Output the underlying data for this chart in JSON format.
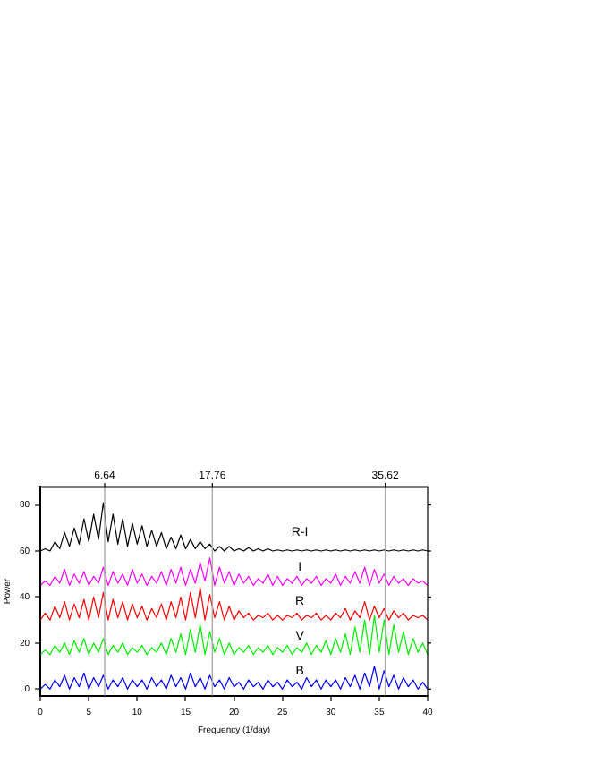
{
  "chart_data": {
    "type": "line",
    "xlabel": "Frequency (1/day)",
    "ylabel": "Power",
    "x": [
      0,
      0.5,
      1,
      1.5,
      2,
      2.5,
      3,
      3.5,
      4,
      4.5,
      5,
      5.5,
      6,
      6.5,
      7,
      7.5,
      8,
      8.5,
      9,
      9.5,
      10,
      10.5,
      11,
      11.5,
      12,
      12.5,
      13,
      13.5,
      14,
      14.5,
      15,
      15.5,
      16,
      16.5,
      17,
      17.5,
      18,
      18.5,
      19,
      19.5,
      20,
      20.5,
      21,
      21.5,
      22,
      22.5,
      23,
      23.5,
      24,
      24.5,
      25,
      25.5,
      26,
      26.5,
      27,
      27.5,
      28,
      28.5,
      29,
      29.5,
      30,
      30.5,
      31,
      31.5,
      32,
      32.5,
      33,
      33.5,
      34,
      34.5,
      35,
      35.5,
      36,
      36.5,
      37,
      37.5,
      38,
      38.5,
      39,
      39.5,
      40
    ],
    "series": [
      {
        "name": "R-I",
        "color": "#000000",
        "values": [
          60,
          61,
          60,
          64,
          61,
          68,
          62,
          70,
          63,
          74,
          64,
          76,
          65,
          81,
          64,
          76,
          63,
          74,
          62,
          72,
          63,
          71,
          62,
          69,
          62,
          68,
          61,
          66,
          61,
          67,
          61,
          65,
          61,
          64,
          61,
          63,
          60,
          62,
          60,
          62,
          60,
          61,
          60,
          61.5,
          60,
          61,
          60,
          61,
          60,
          60.5,
          60,
          60.5,
          60,
          60.5,
          60,
          60.5,
          60,
          60.5,
          60,
          60.5,
          60,
          60.5,
          60,
          60.5,
          60,
          60.5,
          60,
          60.5,
          60,
          60.5,
          60,
          60.5,
          60,
          60.5,
          60,
          60.5,
          60,
          60.5,
          60,
          60.5,
          60
        ]
      },
      {
        "name": "I",
        "color": "#ff00ff",
        "values": [
          45,
          47,
          45,
          49,
          46,
          52,
          45,
          50,
          46,
          51,
          45,
          49,
          46,
          53,
          45,
          51,
          46,
          50,
          45,
          52,
          46,
          50,
          45,
          49,
          46,
          51,
          45,
          52,
          46,
          53,
          45,
          52,
          46,
          55,
          47,
          57,
          45,
          53,
          46,
          51,
          45,
          50,
          46,
          49,
          45,
          48,
          46,
          50,
          45,
          49,
          45,
          48,
          46,
          49,
          45,
          48,
          46,
          49,
          45,
          48,
          46,
          50,
          45,
          49,
          46,
          51,
          46,
          53,
          45,
          52,
          46,
          50,
          45,
          49,
          46,
          48,
          45,
          48,
          46,
          47,
          45
        ]
      },
      {
        "name": "R",
        "color": "#ff0000",
        "values": [
          30,
          33,
          30,
          36,
          31,
          38,
          30,
          37,
          31,
          39,
          30,
          40,
          31,
          42,
          30,
          39,
          31,
          38,
          30,
          37,
          31,
          36,
          30,
          35,
          31,
          37,
          30,
          38,
          31,
          40,
          30,
          42,
          31,
          44,
          30,
          41,
          31,
          38,
          30,
          36,
          30,
          34,
          31,
          33,
          30,
          32,
          31,
          33,
          30,
          32,
          30,
          32,
          31,
          33,
          30,
          32,
          31,
          33,
          30,
          32,
          30,
          33,
          31,
          35,
          30,
          34,
          31,
          38,
          30,
          36,
          31,
          35,
          30,
          34,
          31,
          33,
          30,
          32,
          31,
          32,
          30
        ]
      },
      {
        "name": "V",
        "color": "#00ee00",
        "values": [
          15,
          17,
          15,
          19,
          16,
          20,
          15,
          21,
          16,
          22,
          15,
          20,
          16,
          22,
          15,
          19,
          16,
          20,
          15,
          18,
          16,
          19,
          15,
          18,
          16,
          20,
          15,
          22,
          16,
          24,
          15,
          26,
          16,
          28,
          15,
          25,
          16,
          22,
          15,
          20,
          15,
          18,
          16,
          19,
          15,
          18,
          16,
          19,
          15,
          18,
          16,
          19,
          15,
          18,
          16,
          20,
          15,
          19,
          16,
          21,
          15,
          22,
          16,
          24,
          15,
          27,
          16,
          30,
          15,
          32,
          16,
          30,
          15,
          28,
          16,
          25,
          15,
          22,
          16,
          20,
          15
        ]
      },
      {
        "name": "B",
        "color": "#0000ff",
        "values": [
          0,
          2,
          0,
          4,
          1,
          6,
          0,
          5,
          1,
          7,
          0,
          5,
          1,
          6,
          0,
          4,
          1,
          5,
          0,
          4,
          1,
          4,
          0,
          5,
          1,
          4,
          0,
          6,
          1,
          5,
          0,
          7,
          1,
          5,
          0,
          6,
          1,
          4,
          0,
          5,
          1,
          3,
          0,
          4,
          1,
          3,
          0,
          4,
          1,
          3,
          0,
          4,
          1,
          3,
          0,
          5,
          1,
          4,
          0,
          4,
          1,
          4,
          0,
          5,
          1,
          6,
          0,
          7,
          1,
          10,
          0,
          8,
          1,
          6,
          0,
          5,
          1,
          4,
          0,
          3,
          0
        ]
      }
    ],
    "xlim": [
      0,
      40
    ],
    "xticks": [
      0,
      5,
      10,
      15,
      20,
      25,
      30,
      35,
      40
    ],
    "ylim": [
      -3,
      88
    ],
    "yticks": [
      0,
      20,
      40,
      60,
      80
    ],
    "ref_lines": [
      {
        "axis": "x",
        "value": 6.64,
        "label": "6.64",
        "color": "#aaaaaa"
      },
      {
        "axis": "x",
        "value": 17.76,
        "label": "17.76",
        "color": "#aaaaaa"
      },
      {
        "axis": "x",
        "value": 35.62,
        "label": "35.62",
        "color": "#aaaaaa"
      }
    ],
    "grid": false,
    "legend": false,
    "marker": "none",
    "line_style": "solid"
  }
}
